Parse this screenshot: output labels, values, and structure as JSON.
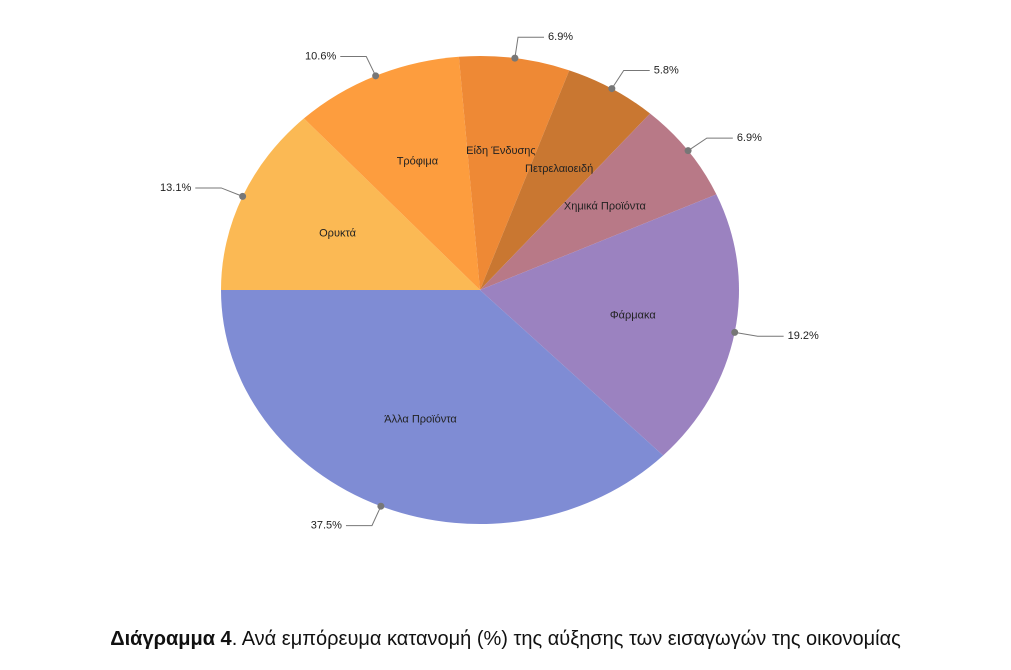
{
  "chart_data": {
    "type": "pie",
    "categories": [
      "Ορυκτά",
      "Τρόφιμα",
      "Είδη Ένδυσης",
      "Πετρελαιοειδή",
      "Χημικά Προϊόντα",
      "Φάρμακα",
      "Άλλα Προϊόντα"
    ],
    "values": [
      13.1,
      10.6,
      6.9,
      5.8,
      6.9,
      19.2,
      37.5
    ],
    "value_labels": [
      "13.1%",
      "10.6%",
      "6.9%",
      "5.8%",
      "6.9%",
      "19.2%",
      "37.5%"
    ],
    "colors": [
      "#fbb954",
      "#fd9d3e",
      "#ee8935",
      "#c97731",
      "#b87987",
      "#9b82c0",
      "#7f8cd4"
    ]
  },
  "caption": {
    "label": "Διάγραμμα 4",
    "text": ". Ανά εμπόρευμα κατανομή (%) της αύξησης των εισαγωγών της οικονομίας"
  }
}
